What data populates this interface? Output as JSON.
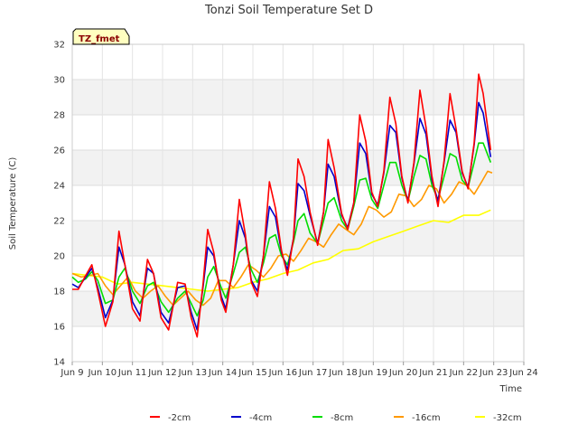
{
  "chart_data": {
    "type": "line",
    "title": "Tonzi Soil Temperature Set D",
    "xlabel": "Time",
    "ylabel": "Soil Temperature (C)",
    "badge": "TZ_fmet",
    "ylim": [
      14,
      32
    ],
    "xlim": [
      9,
      24
    ],
    "y_ticks": [
      "14",
      "16",
      "18",
      "20",
      "22",
      "24",
      "26",
      "28",
      "30",
      "32"
    ],
    "x_ticks": [
      "Jun 9",
      "Jun 10",
      "Jun 11",
      "Jun 12",
      "Jun 13",
      "Jun 14",
      "Jun 15",
      "Jun 16",
      "Jun 17",
      "Jun 18",
      "Jun 19",
      "Jun 20",
      "Jun 21",
      "Jun 22",
      "Jun 23",
      "Jun 24"
    ],
    "grid": true,
    "legend_position": "bottom",
    "series": [
      {
        "name": "-2cm",
        "color": "#ff0000",
        "points": [
          [
            9.0,
            18.1
          ],
          [
            9.2,
            18.1
          ],
          [
            9.45,
            18.9
          ],
          [
            9.65,
            19.5
          ],
          [
            9.85,
            18.0
          ],
          [
            10.1,
            16.0
          ],
          [
            10.35,
            17.4
          ],
          [
            10.55,
            21.4
          ],
          [
            10.75,
            19.5
          ],
          [
            11.0,
            17.0
          ],
          [
            11.25,
            16.3
          ],
          [
            11.5,
            19.8
          ],
          [
            11.7,
            19.0
          ],
          [
            11.95,
            16.5
          ],
          [
            12.2,
            15.8
          ],
          [
            12.5,
            18.5
          ],
          [
            12.75,
            18.4
          ],
          [
            12.95,
            16.5
          ],
          [
            13.15,
            15.4
          ],
          [
            13.35,
            18.5
          ],
          [
            13.5,
            21.5
          ],
          [
            13.7,
            20.2
          ],
          [
            13.95,
            17.5
          ],
          [
            14.1,
            16.8
          ],
          [
            14.35,
            19.5
          ],
          [
            14.55,
            23.2
          ],
          [
            14.75,
            21.2
          ],
          [
            14.95,
            18.5
          ],
          [
            15.15,
            17.7
          ],
          [
            15.35,
            20.0
          ],
          [
            15.55,
            24.2
          ],
          [
            15.75,
            22.7
          ],
          [
            15.95,
            20.3
          ],
          [
            16.15,
            18.9
          ],
          [
            16.35,
            21.0
          ],
          [
            16.5,
            25.5
          ],
          [
            16.7,
            24.5
          ],
          [
            16.9,
            22.5
          ],
          [
            17.15,
            20.6
          ],
          [
            17.35,
            22.5
          ],
          [
            17.5,
            26.6
          ],
          [
            17.7,
            25.0
          ],
          [
            17.95,
            22.4
          ],
          [
            18.15,
            21.5
          ],
          [
            18.35,
            23.0
          ],
          [
            18.55,
            28.0
          ],
          [
            18.75,
            26.5
          ],
          [
            18.95,
            23.6
          ],
          [
            19.15,
            22.8
          ],
          [
            19.35,
            24.8
          ],
          [
            19.55,
            29.0
          ],
          [
            19.75,
            27.5
          ],
          [
            19.95,
            24.5
          ],
          [
            20.15,
            23.0
          ],
          [
            20.35,
            25.3
          ],
          [
            20.55,
            29.4
          ],
          [
            20.75,
            27.3
          ],
          [
            20.95,
            24.5
          ],
          [
            21.15,
            22.8
          ],
          [
            21.35,
            25.4
          ],
          [
            21.55,
            29.2
          ],
          [
            21.75,
            27.2
          ],
          [
            21.95,
            24.8
          ],
          [
            22.15,
            23.8
          ],
          [
            22.35,
            26.4
          ],
          [
            22.5,
            30.3
          ],
          [
            22.65,
            29.2
          ],
          [
            22.9,
            26.0
          ]
        ]
      },
      {
        "name": "-4cm",
        "color": "#0000cc",
        "points": [
          [
            9.0,
            18.4
          ],
          [
            9.2,
            18.2
          ],
          [
            9.45,
            18.8
          ],
          [
            9.65,
            19.3
          ],
          [
            9.85,
            18.2
          ],
          [
            10.1,
            16.5
          ],
          [
            10.35,
            17.5
          ],
          [
            10.55,
            20.5
          ],
          [
            10.75,
            19.5
          ],
          [
            11.0,
            17.4
          ],
          [
            11.25,
            16.6
          ],
          [
            11.5,
            19.3
          ],
          [
            11.7,
            19.0
          ],
          [
            11.95,
            16.8
          ],
          [
            12.2,
            16.2
          ],
          [
            12.5,
            18.2
          ],
          [
            12.75,
            18.3
          ],
          [
            12.95,
            16.8
          ],
          [
            13.15,
            15.8
          ],
          [
            13.35,
            18.3
          ],
          [
            13.5,
            20.5
          ],
          [
            13.7,
            20.0
          ],
          [
            13.95,
            17.7
          ],
          [
            14.1,
            17.0
          ],
          [
            14.35,
            19.5
          ],
          [
            14.55,
            22.0
          ],
          [
            14.75,
            21.0
          ],
          [
            14.95,
            18.6
          ],
          [
            15.15,
            18.0
          ],
          [
            15.35,
            20.0
          ],
          [
            15.55,
            22.8
          ],
          [
            15.75,
            22.2
          ],
          [
            15.95,
            20.2
          ],
          [
            16.15,
            19.2
          ],
          [
            16.35,
            21.0
          ],
          [
            16.5,
            24.1
          ],
          [
            16.7,
            23.7
          ],
          [
            16.9,
            22.3
          ],
          [
            17.15,
            20.7
          ],
          [
            17.35,
            22.5
          ],
          [
            17.5,
            25.2
          ],
          [
            17.7,
            24.5
          ],
          [
            17.95,
            22.3
          ],
          [
            18.15,
            21.6
          ],
          [
            18.35,
            23.0
          ],
          [
            18.55,
            26.4
          ],
          [
            18.75,
            25.8
          ],
          [
            18.95,
            23.5
          ],
          [
            19.15,
            22.9
          ],
          [
            19.35,
            24.7
          ],
          [
            19.55,
            27.4
          ],
          [
            19.75,
            27.0
          ],
          [
            19.95,
            24.4
          ],
          [
            20.15,
            23.1
          ],
          [
            20.35,
            25.2
          ],
          [
            20.55,
            27.8
          ],
          [
            20.75,
            26.9
          ],
          [
            20.95,
            24.3
          ],
          [
            21.15,
            23.1
          ],
          [
            21.35,
            25.3
          ],
          [
            21.55,
            27.7
          ],
          [
            21.75,
            27.0
          ],
          [
            21.95,
            24.7
          ],
          [
            22.15,
            23.9
          ],
          [
            22.35,
            26.3
          ],
          [
            22.5,
            28.7
          ],
          [
            22.65,
            28.1
          ],
          [
            22.9,
            25.6
          ]
        ]
      },
      {
        "name": "-8cm",
        "color": "#00dd00",
        "points": [
          [
            9.0,
            18.8
          ],
          [
            9.2,
            18.5
          ],
          [
            9.45,
            18.7
          ],
          [
            9.65,
            19.1
          ],
          [
            9.85,
            18.6
          ],
          [
            10.1,
            17.3
          ],
          [
            10.35,
            17.5
          ],
          [
            10.55,
            18.8
          ],
          [
            10.75,
            19.3
          ],
          [
            11.0,
            18.0
          ],
          [
            11.25,
            17.3
          ],
          [
            11.5,
            18.3
          ],
          [
            11.7,
            18.5
          ],
          [
            11.95,
            17.4
          ],
          [
            12.2,
            16.8
          ],
          [
            12.5,
            17.6
          ],
          [
            12.75,
            18.0
          ],
          [
            12.95,
            17.3
          ],
          [
            13.15,
            16.6
          ],
          [
            13.35,
            17.5
          ],
          [
            13.5,
            18.8
          ],
          [
            13.7,
            19.4
          ],
          [
            13.95,
            18.2
          ],
          [
            14.1,
            17.6
          ],
          [
            14.35,
            19.0
          ],
          [
            14.55,
            20.2
          ],
          [
            14.75,
            20.5
          ],
          [
            14.95,
            19.2
          ],
          [
            15.15,
            18.5
          ],
          [
            15.35,
            19.6
          ],
          [
            15.55,
            21.0
          ],
          [
            15.75,
            21.2
          ],
          [
            15.95,
            20.0
          ],
          [
            16.15,
            19.5
          ],
          [
            16.35,
            20.8
          ],
          [
            16.5,
            22.0
          ],
          [
            16.7,
            22.4
          ],
          [
            16.9,
            21.3
          ],
          [
            17.15,
            20.7
          ],
          [
            17.35,
            22.0
          ],
          [
            17.5,
            23.0
          ],
          [
            17.7,
            23.3
          ],
          [
            17.95,
            22.0
          ],
          [
            18.15,
            21.5
          ],
          [
            18.35,
            22.8
          ],
          [
            18.55,
            24.3
          ],
          [
            18.75,
            24.4
          ],
          [
            18.95,
            23.2
          ],
          [
            19.15,
            22.7
          ],
          [
            19.35,
            24.0
          ],
          [
            19.55,
            25.3
          ],
          [
            19.75,
            25.3
          ],
          [
            19.95,
            24.0
          ],
          [
            20.15,
            23.1
          ],
          [
            20.35,
            24.5
          ],
          [
            20.55,
            25.7
          ],
          [
            20.75,
            25.5
          ],
          [
            20.95,
            24.0
          ],
          [
            21.15,
            23.2
          ],
          [
            21.35,
            24.5
          ],
          [
            21.55,
            25.8
          ],
          [
            21.75,
            25.6
          ],
          [
            21.95,
            24.3
          ],
          [
            22.15,
            23.9
          ],
          [
            22.35,
            25.3
          ],
          [
            22.5,
            26.4
          ],
          [
            22.65,
            26.4
          ],
          [
            22.9,
            25.3
          ]
        ]
      },
      {
        "name": "-16cm",
        "color": "#ff9900",
        "points": [
          [
            9.0,
            19.0
          ],
          [
            9.3,
            18.8
          ],
          [
            9.6,
            18.9
          ],
          [
            9.85,
            19.0
          ],
          [
            10.1,
            18.3
          ],
          [
            10.35,
            17.8
          ],
          [
            10.6,
            18.3
          ],
          [
            10.85,
            18.8
          ],
          [
            11.1,
            18.0
          ],
          [
            11.35,
            17.6
          ],
          [
            11.6,
            18.0
          ],
          [
            11.85,
            18.3
          ],
          [
            12.1,
            17.7
          ],
          [
            12.35,
            17.2
          ],
          [
            12.6,
            17.6
          ],
          [
            12.85,
            18.0
          ],
          [
            13.1,
            17.5
          ],
          [
            13.35,
            17.2
          ],
          [
            13.6,
            17.6
          ],
          [
            13.85,
            18.6
          ],
          [
            14.1,
            18.6
          ],
          [
            14.35,
            18.2
          ],
          [
            14.6,
            18.8
          ],
          [
            14.85,
            19.5
          ],
          [
            15.1,
            19.2
          ],
          [
            15.35,
            18.8
          ],
          [
            15.6,
            19.3
          ],
          [
            15.85,
            20.0
          ],
          [
            16.1,
            20.1
          ],
          [
            16.35,
            19.7
          ],
          [
            16.6,
            20.3
          ],
          [
            16.85,
            21.0
          ],
          [
            17.1,
            20.8
          ],
          [
            17.35,
            20.5
          ],
          [
            17.6,
            21.2
          ],
          [
            17.85,
            21.8
          ],
          [
            18.1,
            21.5
          ],
          [
            18.35,
            21.2
          ],
          [
            18.6,
            21.8
          ],
          [
            18.85,
            22.8
          ],
          [
            19.1,
            22.6
          ],
          [
            19.35,
            22.2
          ],
          [
            19.6,
            22.5
          ],
          [
            19.85,
            23.5
          ],
          [
            20.1,
            23.4
          ],
          [
            20.35,
            22.8
          ],
          [
            20.6,
            23.2
          ],
          [
            20.85,
            24.0
          ],
          [
            21.1,
            23.8
          ],
          [
            21.35,
            23.0
          ],
          [
            21.6,
            23.5
          ],
          [
            21.85,
            24.2
          ],
          [
            22.1,
            24.0
          ],
          [
            22.35,
            23.5
          ],
          [
            22.6,
            24.2
          ],
          [
            22.8,
            24.8
          ],
          [
            22.95,
            24.7
          ]
        ]
      },
      {
        "name": "-32cm",
        "color": "#ffff00",
        "points": [
          [
            9.0,
            19.0
          ],
          [
            9.5,
            18.9
          ],
          [
            10.0,
            18.8
          ],
          [
            10.5,
            18.4
          ],
          [
            11.0,
            18.5
          ],
          [
            11.5,
            18.4
          ],
          [
            12.0,
            18.3
          ],
          [
            12.5,
            18.2
          ],
          [
            13.0,
            18.1
          ],
          [
            13.5,
            18.0
          ],
          [
            14.0,
            18.1
          ],
          [
            14.5,
            18.2
          ],
          [
            15.0,
            18.5
          ],
          [
            15.5,
            18.7
          ],
          [
            16.0,
            19.0
          ],
          [
            16.5,
            19.2
          ],
          [
            17.0,
            19.6
          ],
          [
            17.5,
            19.8
          ],
          [
            18.0,
            20.3
          ],
          [
            18.5,
            20.4
          ],
          [
            19.0,
            20.8
          ],
          [
            19.5,
            21.1
          ],
          [
            20.0,
            21.4
          ],
          [
            20.5,
            21.7
          ],
          [
            21.0,
            22.0
          ],
          [
            21.5,
            21.9
          ],
          [
            22.0,
            22.3
          ],
          [
            22.5,
            22.3
          ],
          [
            22.9,
            22.6
          ]
        ]
      }
    ]
  }
}
